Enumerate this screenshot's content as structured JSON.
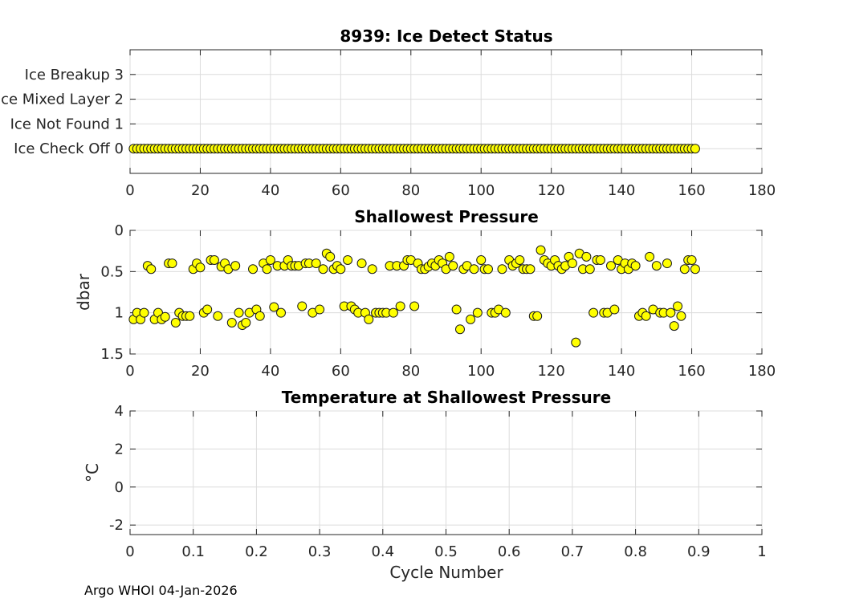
{
  "chart_data": [
    {
      "type": "scatter",
      "title": "8939: Ice Detect Status",
      "xlabel": "",
      "ylabel": "",
      "xlim": [
        0,
        180
      ],
      "ylim": [
        -1,
        4
      ],
      "x_ticks": [
        "0",
        "20",
        "40",
        "60",
        "80",
        "100",
        "120",
        "140",
        "160",
        "180"
      ],
      "y_ticks": [
        {
          "value": 0,
          "label": "Ice Check Off 0"
        },
        {
          "value": 1,
          "label": "Ice Not Found 1"
        },
        {
          "value": 2,
          "label": "Ice Mixed Layer 2"
        },
        {
          "value": 3,
          "label": "Ice Breakup 3"
        }
      ],
      "grid": true,
      "marker_color": "#ffff00",
      "series": [
        {
          "name": "Ice Detect Status",
          "x_start": 1,
          "x_end": 161,
          "value": 0
        }
      ]
    },
    {
      "type": "scatter",
      "title": "Shallowest Pressure",
      "xlabel": "",
      "ylabel": "dbar",
      "xlim": [
        0,
        180
      ],
      "ylim": [
        0,
        1.5
      ],
      "y_reversed": true,
      "x_ticks": [
        "0",
        "20",
        "40",
        "60",
        "80",
        "100",
        "120",
        "140",
        "160",
        "180"
      ],
      "y_ticks": [
        "0",
        "0.5",
        "1",
        "1.5"
      ],
      "grid": true,
      "marker_color": "#ffff00",
      "series": [
        {
          "name": "Shallowest Pressure",
          "x": [
            1,
            2,
            3,
            4,
            5,
            6,
            7,
            8,
            9,
            10,
            11,
            12,
            13,
            14,
            15,
            16,
            17,
            18,
            19,
            20,
            21,
            22,
            23,
            24,
            25,
            26,
            27,
            28,
            29,
            30,
            31,
            32,
            33,
            34,
            35,
            36,
            37,
            38,
            39,
            40,
            41,
            42,
            43,
            44,
            45,
            46,
            47,
            48,
            49,
            50,
            51,
            52,
            53,
            54,
            55,
            56,
            57,
            58,
            59,
            60,
            61,
            62,
            63,
            64,
            65,
            66,
            67,
            68,
            69,
            70,
            71,
            72,
            73,
            74,
            75,
            76,
            77,
            78,
            79,
            80,
            81,
            82,
            83,
            84,
            85,
            86,
            87,
            88,
            89,
            90,
            91,
            92,
            93,
            94,
            95,
            96,
            97,
            98,
            99,
            100,
            101,
            102,
            103,
            104,
            105,
            106,
            107,
            108,
            109,
            110,
            111,
            112,
            113,
            114,
            115,
            116,
            117,
            118,
            119,
            120,
            121,
            122,
            123,
            124,
            125,
            126,
            127,
            128,
            129,
            130,
            131,
            132,
            133,
            134,
            135,
            136,
            137,
            138,
            139,
            140,
            141,
            142,
            143,
            144,
            145,
            146,
            147,
            148,
            149,
            150,
            151,
            152,
            153,
            154,
            155,
            156,
            157,
            158,
            159,
            160,
            161
          ],
          "values": [
            1.08,
            1.0,
            1.08,
            1.0,
            0.43,
            0.47,
            1.08,
            1.0,
            1.08,
            1.05,
            0.4,
            0.4,
            1.12,
            1.0,
            1.04,
            1.04,
            1.04,
            0.47,
            0.4,
            0.45,
            1.0,
            0.96,
            0.36,
            0.36,
            1.04,
            0.44,
            0.4,
            0.47,
            1.12,
            0.43,
            1.0,
            1.15,
            1.12,
            1.0,
            0.47,
            0.96,
            1.04,
            0.4,
            0.47,
            0.36,
            0.93,
            0.43,
            1.0,
            0.43,
            0.36,
            0.43,
            0.43,
            0.43,
            0.92,
            0.4,
            0.4,
            1.0,
            0.4,
            0.96,
            0.47,
            0.28,
            0.32,
            0.47,
            0.43,
            0.47,
            0.92,
            0.36,
            0.92,
            0.96,
            1.0,
            0.4,
            1.0,
            1.08,
            0.47,
            1.0,
            1.0,
            1.0,
            1.0,
            0.43,
            1.0,
            0.43,
            0.92,
            0.43,
            0.36,
            0.36,
            0.92,
            0.4,
            0.47,
            0.47,
            0.44,
            0.4,
            0.43,
            0.36,
            0.4,
            0.47,
            0.32,
            0.43,
            0.96,
            1.2,
            0.47,
            0.43,
            1.08,
            0.47,
            1.0,
            0.36,
            0.47,
            0.47,
            1.0,
            1.0,
            0.96,
            0.47,
            1.0,
            0.36,
            0.43,
            0.4,
            0.36,
            0.47,
            0.47,
            0.47,
            1.04,
            1.04,
            0.24,
            0.36,
            0.4,
            0.43,
            0.36,
            0.43,
            0.47,
            0.43,
            0.32,
            0.4,
            1.36,
            0.28,
            0.47,
            0.32,
            0.47,
            1.0,
            0.36,
            0.36,
            1.0,
            1.0,
            0.43,
            0.96,
            0.36,
            0.47,
            0.4,
            0.47,
            0.4,
            0.43,
            1.04,
            1.0,
            1.04,
            0.32,
            0.96,
            0.43,
            1.0,
            1.0,
            0.4,
            1.0,
            1.16,
            0.92,
            1.04,
            0.47,
            0.36,
            0.36,
            0.47
          ]
        }
      ]
    },
    {
      "type": "scatter",
      "title": "Temperature at Shallowest Pressure",
      "xlabel": "Cycle Number",
      "ylabel": "°C",
      "xlim": [
        0,
        1
      ],
      "ylim": [
        -2.5,
        4
      ],
      "x_ticks": [
        "0",
        "0.1",
        "0.2",
        "0.3",
        "0.4",
        "0.5",
        "0.6",
        "0.7",
        "0.8",
        "0.9",
        "1"
      ],
      "y_ticks": [
        "4",
        "2",
        "0",
        "-2"
      ],
      "grid": true,
      "series": []
    }
  ],
  "footer": {
    "text": "Argo WHOI 04-Jan-2026"
  }
}
